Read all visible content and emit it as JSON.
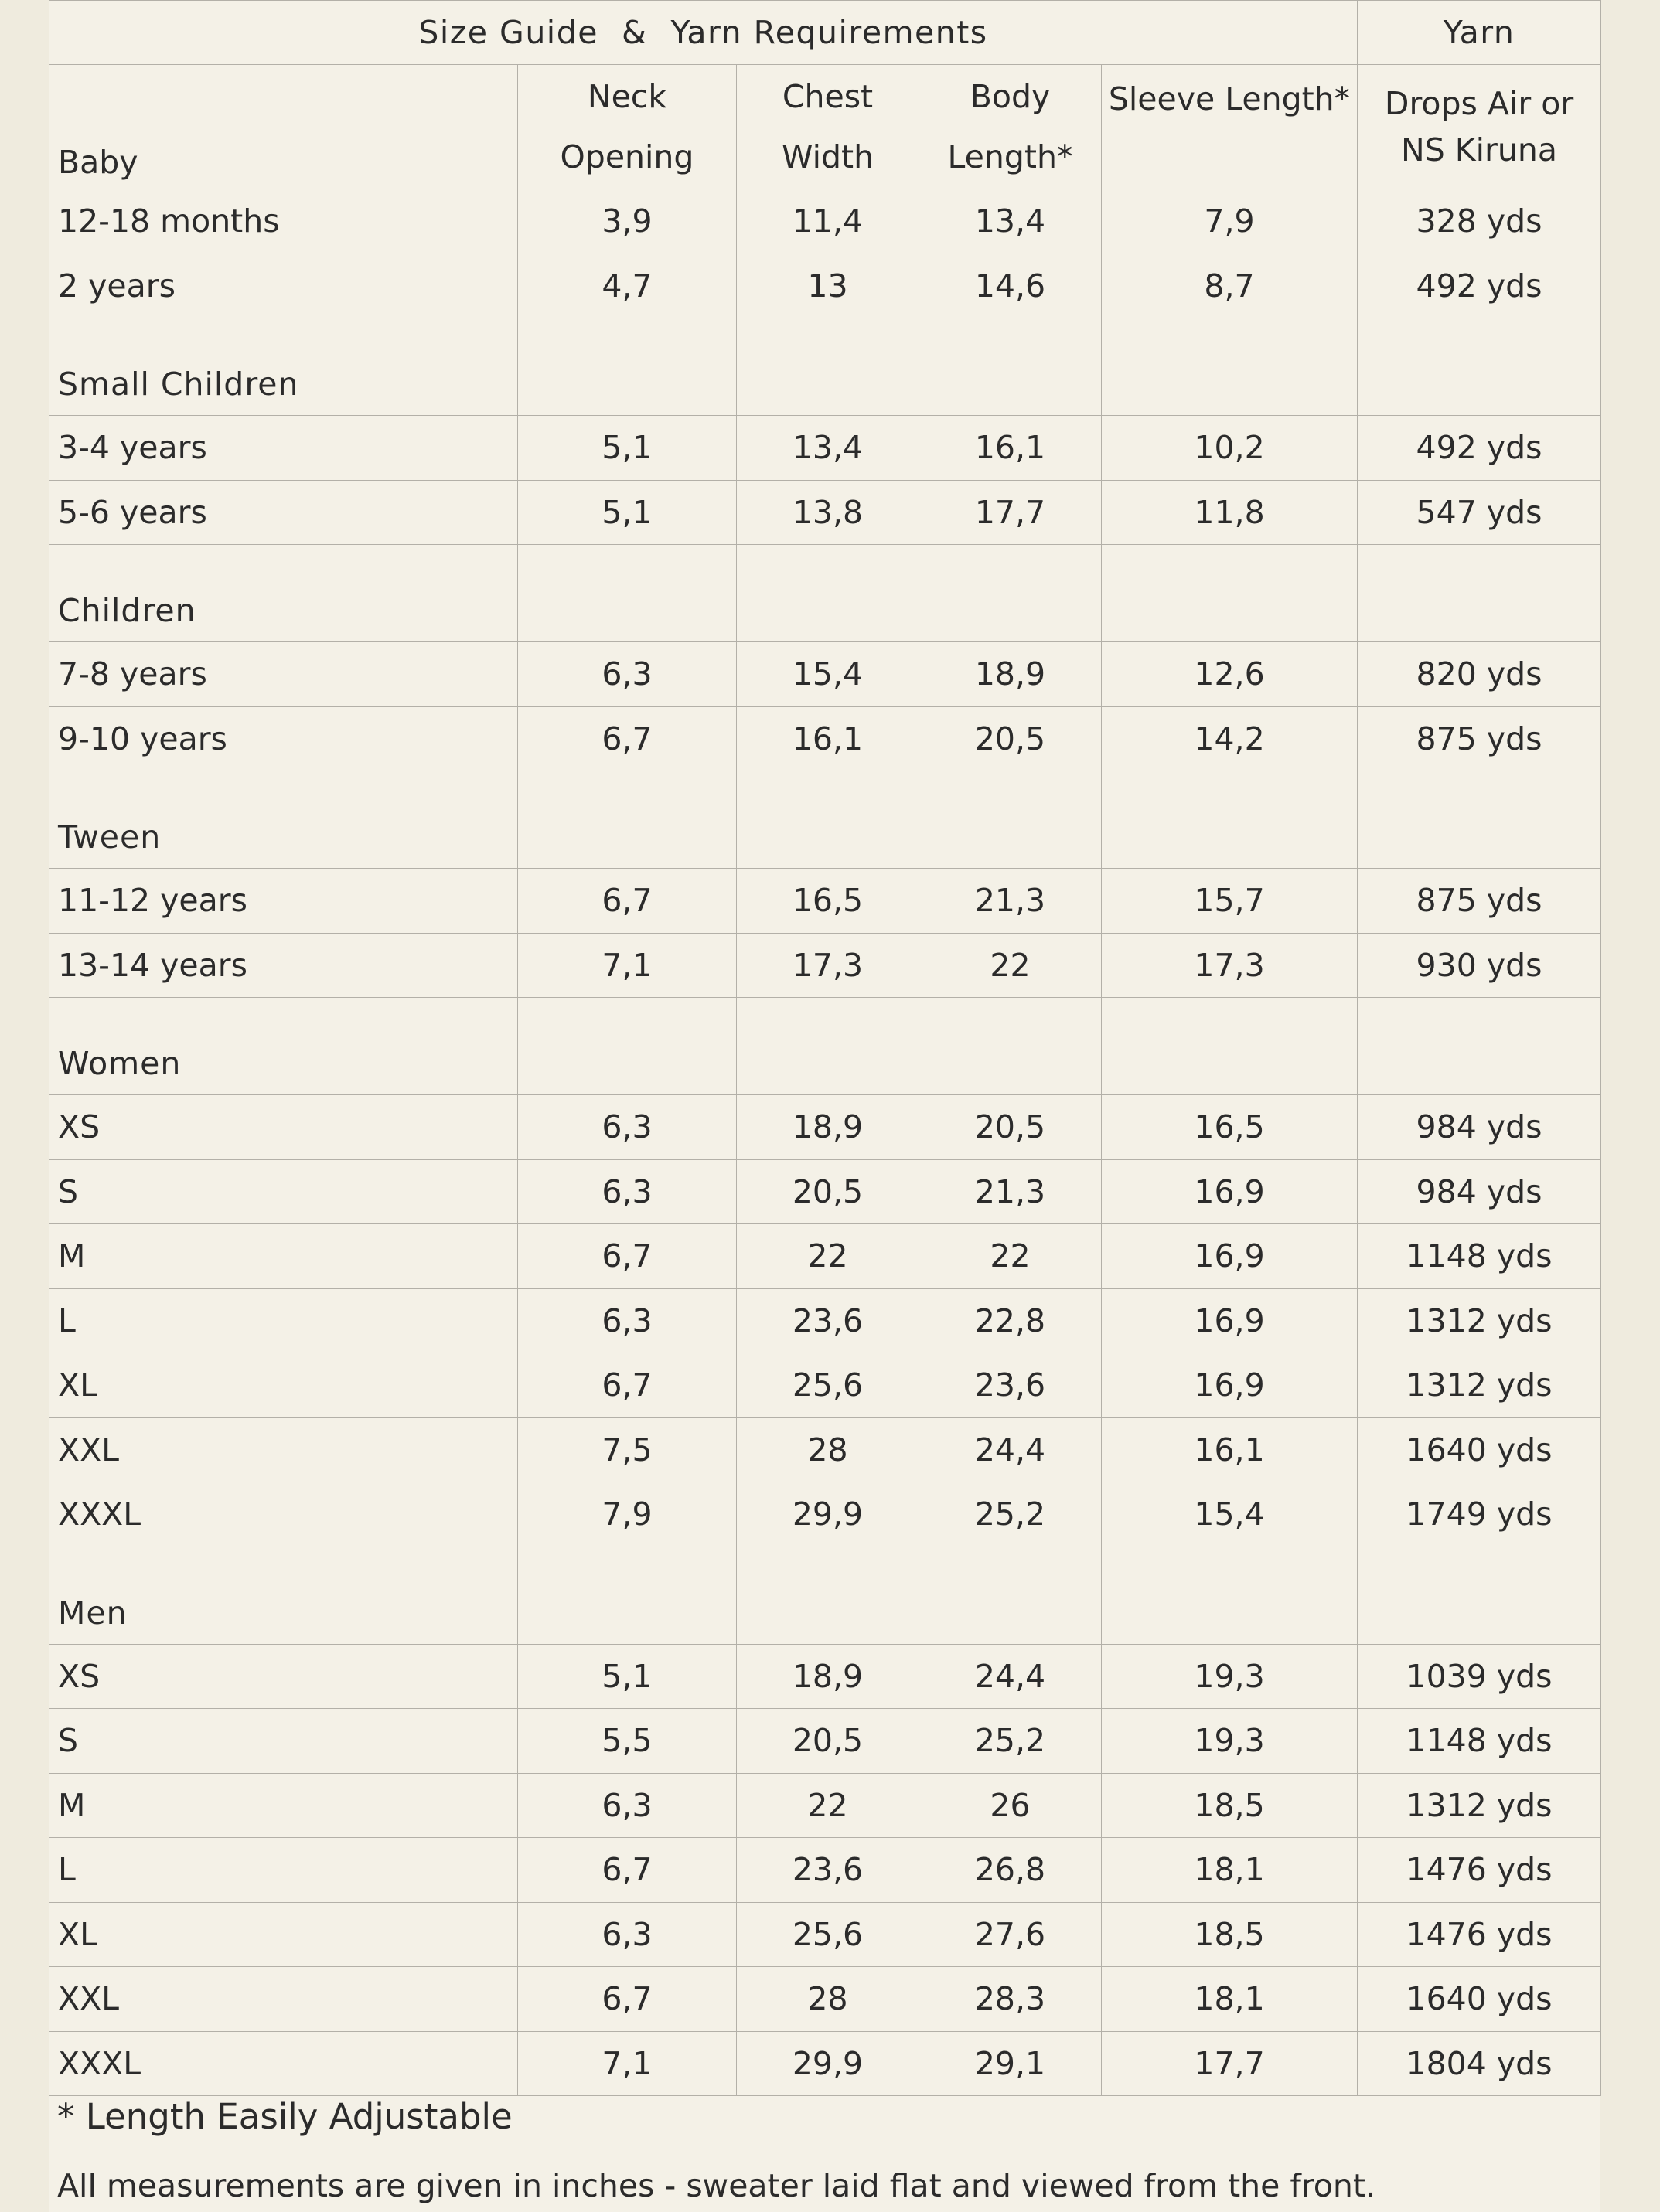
{
  "table": {
    "title_left": "Size Guide",
    "title_amp": "&",
    "title_right": "Yarn Requirements",
    "title_yarn": "Yarn",
    "headers": {
      "baby": "Baby",
      "neck_1": "Neck",
      "neck_2": "Opening",
      "chest_1": "Chest",
      "chest_2": "Width",
      "body_1": "Body",
      "body_2": "Length*",
      "sleeve": "Sleeve Length*",
      "yarn_1": "Drops Air or",
      "yarn_2": "NS Kiruna"
    },
    "sections": [
      {
        "name": "Baby",
        "rows": [
          {
            "size": "12-18 months",
            "neck": "3,9",
            "chest": "11,4",
            "body": "13,4",
            "sleeve": "7,9",
            "yarn": "328 yds"
          },
          {
            "size": "2 years",
            "neck": "4,7",
            "chest": "13",
            "body": "14,6",
            "sleeve": "8,7",
            "yarn": "492 yds"
          }
        ]
      },
      {
        "name": "Small Children",
        "rows": [
          {
            "size": "3-4 years",
            "neck": "5,1",
            "chest": "13,4",
            "body": "16,1",
            "sleeve": "10,2",
            "yarn": "492 yds"
          },
          {
            "size": "5-6 years",
            "neck": "5,1",
            "chest": "13,8",
            "body": "17,7",
            "sleeve": "11,8",
            "yarn": "547 yds"
          }
        ]
      },
      {
        "name": "Children",
        "rows": [
          {
            "size": "7-8 years",
            "neck": "6,3",
            "chest": "15,4",
            "body": "18,9",
            "sleeve": "12,6",
            "yarn": "820 yds"
          },
          {
            "size": "9-10 years",
            "neck": "6,7",
            "chest": "16,1",
            "body": "20,5",
            "sleeve": "14,2",
            "yarn": "875 yds"
          }
        ]
      },
      {
        "name": "Tween",
        "rows": [
          {
            "size": "11-12 years",
            "neck": "6,7",
            "chest": "16,5",
            "body": "21,3",
            "sleeve": "15,7",
            "yarn": "875 yds"
          },
          {
            "size": "13-14 years",
            "neck": "7,1",
            "chest": "17,3",
            "body": "22",
            "sleeve": "17,3",
            "yarn": "930 yds"
          }
        ]
      },
      {
        "name": "Women",
        "rows": [
          {
            "size": "XS",
            "neck": "6,3",
            "chest": "18,9",
            "body": "20,5",
            "sleeve": "16,5",
            "yarn": "984 yds"
          },
          {
            "size": "S",
            "neck": "6,3",
            "chest": "20,5",
            "body": "21,3",
            "sleeve": "16,9",
            "yarn": "984 yds"
          },
          {
            "size": "M",
            "neck": "6,7",
            "chest": "22",
            "body": "22",
            "sleeve": "16,9",
            "yarn": "1148 yds"
          },
          {
            "size": "L",
            "neck": "6,3",
            "chest": "23,6",
            "body": "22,8",
            "sleeve": "16,9",
            "yarn": "1312 yds"
          },
          {
            "size": "XL",
            "neck": "6,7",
            "chest": "25,6",
            "body": "23,6",
            "sleeve": "16,9",
            "yarn": "1312 yds"
          },
          {
            "size": "XXL",
            "neck": "7,5",
            "chest": "28",
            "body": "24,4",
            "sleeve": "16,1",
            "yarn": "1640 yds"
          },
          {
            "size": "XXXL",
            "neck": "7,9",
            "chest": "29,9",
            "body": "25,2",
            "sleeve": "15,4",
            "yarn": "1749 yds"
          }
        ]
      },
      {
        "name": "Men",
        "rows": [
          {
            "size": "XS",
            "neck": "5,1",
            "chest": "18,9",
            "body": "24,4",
            "sleeve": "19,3",
            "yarn": "1039 yds"
          },
          {
            "size": "S",
            "neck": "5,5",
            "chest": "20,5",
            "body": "25,2",
            "sleeve": "19,3",
            "yarn": "1148 yds"
          },
          {
            "size": "M",
            "neck": "6,3",
            "chest": "22",
            "body": "26",
            "sleeve": "18,5",
            "yarn": "1312 yds"
          },
          {
            "size": "L",
            "neck": "6,7",
            "chest": "23,6",
            "body": "26,8",
            "sleeve": "18,1",
            "yarn": "1476 yds"
          },
          {
            "size": "XL",
            "neck": "6,3",
            "chest": "25,6",
            "body": "27,6",
            "sleeve": "18,5",
            "yarn": "1476 yds"
          },
          {
            "size": "XXL",
            "neck": "6,7",
            "chest": "28",
            "body": "28,3",
            "sleeve": "18,1",
            "yarn": "1640 yds"
          },
          {
            "size": "XXXL",
            "neck": "7,1",
            "chest": "29,9",
            "body": "29,1",
            "sleeve": "17,7",
            "yarn": "1804 yds"
          }
        ]
      }
    ]
  },
  "notes": {
    "adjustable": "* Length Easily Adjustable",
    "measurements": "All measurements are given in inches - sweater laid flat and viewed from the front."
  },
  "colors": {
    "page_background": "#efebde",
    "sheet_background": "#f4f1e7",
    "grid_line": "#b3b0a8",
    "text": "#2b2b2b"
  }
}
